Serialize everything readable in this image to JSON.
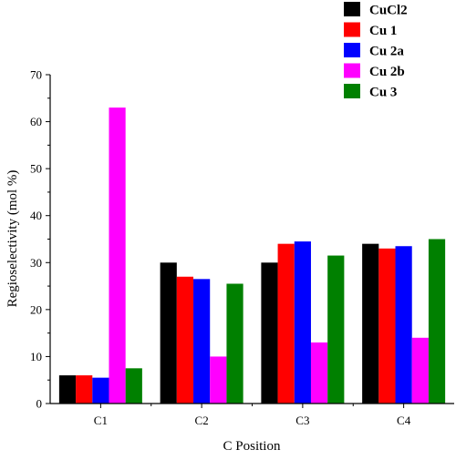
{
  "chart_data": {
    "type": "bar",
    "title": "",
    "xlabel": "C Position",
    "ylabel": "Regioselectivity (mol %)",
    "categories": [
      "C1",
      "C2",
      "C3",
      "C4"
    ],
    "ylim": [
      0,
      70
    ],
    "yticks": [
      0,
      10,
      20,
      30,
      40,
      50,
      60,
      70
    ],
    "grid": false,
    "legend_position": "top-right",
    "series": [
      {
        "name": "CuCl2",
        "color": "#000000",
        "values": [
          6,
          30,
          30,
          34
        ]
      },
      {
        "name": "Cu 1",
        "color": "#ff0000",
        "values": [
          6,
          27,
          34,
          33
        ]
      },
      {
        "name": "Cu 2a",
        "color": "#0000ff",
        "values": [
          5.5,
          26.5,
          34.5,
          33.5
        ]
      },
      {
        "name": "Cu 2b",
        "color": "#ff00ff",
        "values": [
          63,
          10,
          13,
          14
        ]
      },
      {
        "name": "Cu 3",
        "color": "#008000",
        "values": [
          7.5,
          25.5,
          31.5,
          35
        ]
      }
    ]
  }
}
